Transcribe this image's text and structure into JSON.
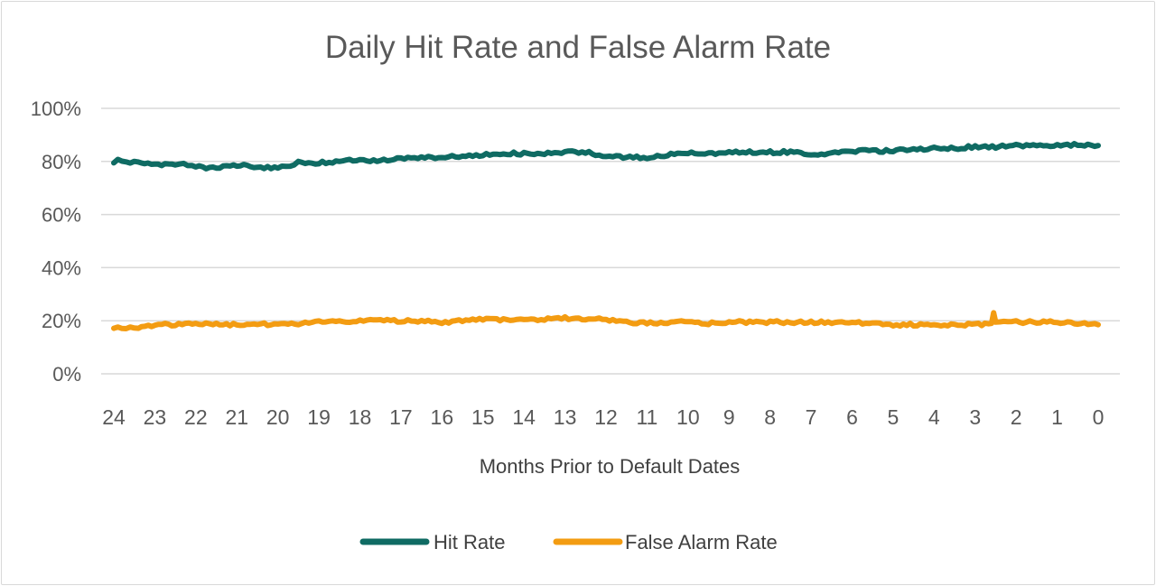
{
  "chart_data": {
    "type": "line",
    "title": "Daily Hit Rate and False Alarm Rate",
    "xlabel": "Months Prior to Default Dates",
    "ylabel": "",
    "x_ticks": [
      "24",
      "23",
      "22",
      "21",
      "20",
      "19",
      "18",
      "17",
      "16",
      "15",
      "14",
      "13",
      "12",
      "11",
      "10",
      "9",
      "8",
      "7",
      "6",
      "5",
      "4",
      "3",
      "2",
      "1",
      "0"
    ],
    "xlim": [
      24,
      0
    ],
    "y_ticks": [
      "0%",
      "20%",
      "40%",
      "60%",
      "80%",
      "100%"
    ],
    "ylim": [
      0,
      100
    ],
    "grid": true,
    "legend_position": "bottom",
    "series": [
      {
        "name": "Hit Rate",
        "color": "#0f6b63",
        "x": [
          24,
          23.8,
          23.5,
          23,
          22.5,
          22.3,
          22,
          21.5,
          21,
          20.5,
          20,
          19.8,
          19.5,
          19,
          18.5,
          18,
          17.5,
          17,
          16.5,
          16,
          15.5,
          15,
          14.5,
          14,
          13.5,
          13,
          12.5,
          12,
          11.5,
          11,
          10.5,
          10,
          9.5,
          9,
          8.5,
          8,
          7.5,
          7,
          6.5,
          6,
          5.5,
          5,
          4.5,
          4,
          3.5,
          3,
          2.5,
          2,
          1.5,
          1,
          0.5,
          0
        ],
        "values": [
          80,
          80.5,
          79.5,
          79,
          78.5,
          79,
          78,
          77.5,
          78.5,
          78,
          77.5,
          78,
          79.5,
          79.5,
          80,
          80.5,
          80.5,
          81,
          81.5,
          81.5,
          82,
          82.5,
          83,
          83,
          83,
          83.5,
          83.5,
          82,
          81.5,
          81.5,
          82.5,
          83,
          83,
          83.5,
          83.5,
          83.5,
          83.5,
          82.5,
          83,
          84,
          84,
          84,
          84.5,
          85,
          85,
          85.5,
          85.5,
          86,
          86,
          86,
          86.5,
          86
        ]
      },
      {
        "name": "False Alarm Rate",
        "color": "#f39c12",
        "x": [
          24,
          23.7,
          23.4,
          23,
          22.5,
          22,
          21.5,
          21,
          20.5,
          20,
          19.5,
          19,
          18.5,
          18,
          17.5,
          17,
          16.5,
          16,
          15.5,
          15,
          14.5,
          14,
          13.5,
          13,
          12.5,
          12,
          11.5,
          11,
          10.5,
          10,
          9.5,
          9,
          8.5,
          8,
          7.5,
          7,
          6.5,
          6,
          5.5,
          5,
          4.5,
          4,
          3.5,
          3,
          2.6,
          2.55,
          2.5,
          2.3,
          2,
          1.5,
          1,
          0.5,
          0
        ],
        "values": [
          17.5,
          17,
          17.5,
          18.5,
          18.5,
          19,
          18.5,
          18.5,
          18.5,
          19,
          19,
          19.5,
          19.5,
          20,
          20,
          20,
          20,
          19.5,
          20,
          20.5,
          20.5,
          20.5,
          20.5,
          21,
          20.5,
          20.5,
          19.5,
          19,
          19.5,
          19.5,
          19,
          19.5,
          19.5,
          19.5,
          19.5,
          19.5,
          19.5,
          19.5,
          19,
          18.5,
          18.5,
          18.5,
          18.5,
          18.5,
          19,
          23,
          19,
          19.5,
          19.5,
          19.5,
          19.5,
          19,
          18.5
        ]
      }
    ]
  }
}
